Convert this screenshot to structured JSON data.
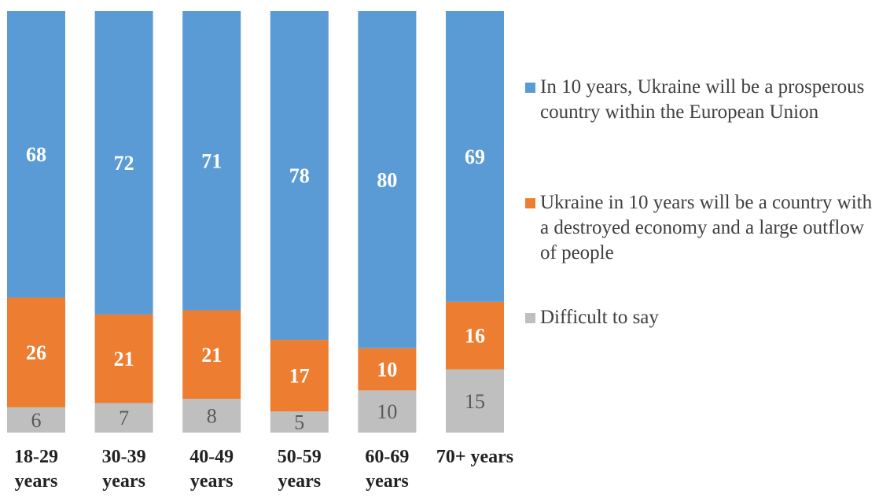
{
  "chart_data": {
    "type": "bar",
    "stacked": true,
    "percent": true,
    "categories": [
      [
        "18-29",
        "years"
      ],
      [
        "30-39",
        "years"
      ],
      [
        "40-49",
        "years"
      ],
      [
        "50-59",
        "years"
      ],
      [
        "60-69",
        "years"
      ],
      [
        "70+ years"
      ]
    ],
    "series": [
      {
        "name": "Difficult to say",
        "color": "#bfbfbf",
        "label_color": "#595959",
        "label_bold": false,
        "values": [
          6,
          7,
          8,
          5,
          10,
          15
        ]
      },
      {
        "name": "Ukraine in 10 years will be a country with a destroyed economy and a large outflow of people",
        "color": "#ed7d31",
        "label_color": "#ffffff",
        "label_bold": true,
        "values": [
          26,
          21,
          21,
          17,
          10,
          16
        ]
      },
      {
        "name": "In 10 years, Ukraine will be a prosperous country within the European Union",
        "color": "#5b9bd5",
        "label_color": "#ffffff",
        "label_bold": true,
        "values": [
          68,
          72,
          71,
          78,
          80,
          69
        ]
      }
    ],
    "legend_order": [
      2,
      1,
      0
    ],
    "legend_position": "right",
    "ylim": [
      0,
      100
    ],
    "title": "",
    "xlabel": "",
    "ylabel": ""
  }
}
